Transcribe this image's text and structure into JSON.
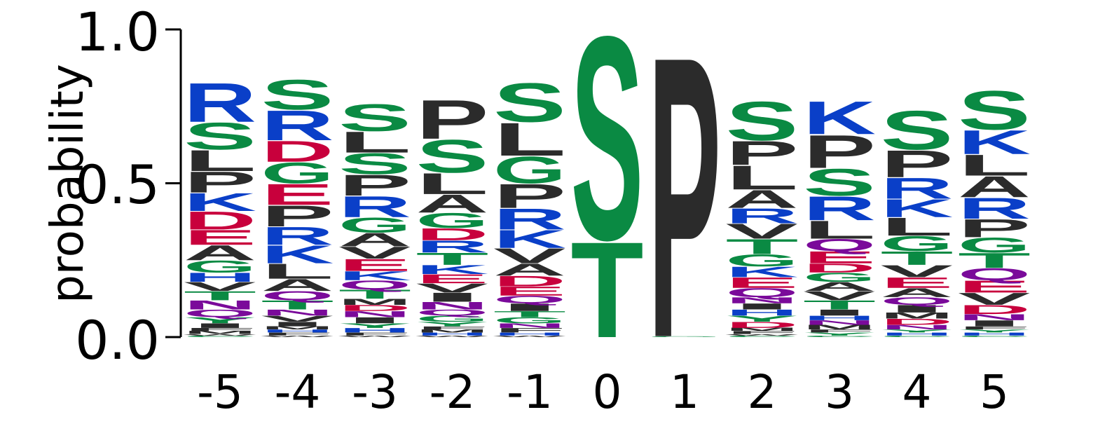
{
  "chart_data": {
    "type": "sequence-logo",
    "ylabel": "probability",
    "ylim": [
      0,
      1
    ],
    "y_ticks": [
      "0.0",
      "0.5",
      "1.0"
    ],
    "color_scheme": {
      "hydrophobic": "#2b2b2b",
      "polar": "#0a8a43",
      "basic": "#0a3fc8",
      "acidic": "#c8003c",
      "amide": "#7a0a9a"
    },
    "letter_colors": {
      "A": "#2b2b2b",
      "V": "#2b2b2b",
      "L": "#2b2b2b",
      "I": "#2b2b2b",
      "P": "#2b2b2b",
      "F": "#2b2b2b",
      "M": "#2b2b2b",
      "W": "#2b2b2b",
      "S": "#0a8a43",
      "T": "#0a8a43",
      "G": "#0a8a43",
      "Y": "#0a8a43",
      "C": "#0a8a43",
      "R": "#0a3fc8",
      "K": "#0a3fc8",
      "H": "#0a3fc8",
      "D": "#c8003c",
      "E": "#c8003c",
      "Q": "#7a0a9a",
      "N": "#7a0a9a"
    },
    "positions": [
      {
        "label": "-5",
        "letters": [
          {
            "aa": "R",
            "p": 0.13
          },
          {
            "aa": "P",
            "p": 0.07
          },
          {
            "aa": "S",
            "p": 0.09
          },
          {
            "aa": "L",
            "p": 0.07
          },
          {
            "aa": "D",
            "p": 0.06
          },
          {
            "aa": "K",
            "p": 0.06
          },
          {
            "aa": "A",
            "p": 0.05
          },
          {
            "aa": "E",
            "p": 0.05
          },
          {
            "aa": "G",
            "p": 0.04
          },
          {
            "aa": "N",
            "p": 0.03
          },
          {
            "aa": "T",
            "p": 0.03
          },
          {
            "aa": "V",
            "p": 0.03
          },
          {
            "aa": "H",
            "p": 0.03
          },
          {
            "aa": "Q",
            "p": 0.025
          },
          {
            "aa": "Y",
            "p": 0.02
          },
          {
            "aa": "I",
            "p": 0.015
          },
          {
            "aa": "M",
            "p": 0.01
          },
          {
            "aa": "F",
            "p": 0.01
          },
          {
            "aa": "C",
            "p": 0.005
          },
          {
            "aa": "W",
            "p": 0.005
          }
        ]
      },
      {
        "label": "-4",
        "letters": [
          {
            "aa": "R",
            "p": 0.1
          },
          {
            "aa": "S",
            "p": 0.1
          },
          {
            "aa": "P",
            "p": 0.07
          },
          {
            "aa": "E",
            "p": 0.07
          },
          {
            "aa": "G",
            "p": 0.07
          },
          {
            "aa": "D",
            "p": 0.07
          },
          {
            "aa": "K",
            "p": 0.06
          },
          {
            "aa": "R",
            "p": 0.06
          },
          {
            "aa": "L",
            "p": 0.05
          },
          {
            "aa": "A",
            "p": 0.04
          },
          {
            "aa": "T",
            "p": 0.03
          },
          {
            "aa": "Q",
            "p": 0.03
          },
          {
            "aa": "V",
            "p": 0.02
          },
          {
            "aa": "N",
            "p": 0.02
          },
          {
            "aa": "I",
            "p": 0.015
          },
          {
            "aa": "F",
            "p": 0.01
          },
          {
            "aa": "H",
            "p": 0.01
          },
          {
            "aa": "M",
            "p": 0.01
          },
          {
            "aa": "W",
            "p": 0.005
          }
        ]
      },
      {
        "label": "-3",
        "letters": [
          {
            "aa": "S",
            "p": 0.09
          },
          {
            "aa": "R",
            "p": 0.07
          },
          {
            "aa": "P",
            "p": 0.07
          },
          {
            "aa": "S",
            "p": 0.07
          },
          {
            "aa": "L",
            "p": 0.07
          },
          {
            "aa": "G",
            "p": 0.05
          },
          {
            "aa": "A",
            "p": 0.045
          },
          {
            "aa": "E",
            "p": 0.04
          },
          {
            "aa": "V",
            "p": 0.04
          },
          {
            "aa": "T",
            "p": 0.03
          },
          {
            "aa": "I",
            "p": 0.02
          },
          {
            "aa": "Q",
            "p": 0.03
          },
          {
            "aa": "K",
            "p": 0.03
          },
          {
            "aa": "N",
            "p": 0.02
          },
          {
            "aa": "D",
            "p": 0.02
          },
          {
            "aa": "M",
            "p": 0.02
          },
          {
            "aa": "H",
            "p": 0.015
          },
          {
            "aa": "Y",
            "p": 0.015
          },
          {
            "aa": "F",
            "p": 0.01
          },
          {
            "aa": "W",
            "p": 0.005
          }
        ]
      },
      {
        "label": "-2",
        "letters": [
          {
            "aa": "P",
            "p": 0.13
          },
          {
            "aa": "S",
            "p": 0.11
          },
          {
            "aa": "L",
            "p": 0.07
          },
          {
            "aa": "A",
            "p": 0.06
          },
          {
            "aa": "G",
            "p": 0.05
          },
          {
            "aa": "T",
            "p": 0.04
          },
          {
            "aa": "R",
            "p": 0.04
          },
          {
            "aa": "D",
            "p": 0.04
          },
          {
            "aa": "I",
            "p": 0.03
          },
          {
            "aa": "V",
            "p": 0.03
          },
          {
            "aa": "E",
            "p": 0.03
          },
          {
            "aa": "K",
            "p": 0.03
          },
          {
            "aa": "N",
            "p": 0.025
          },
          {
            "aa": "G",
            "p": 0.02
          },
          {
            "aa": "Q",
            "p": 0.02
          },
          {
            "aa": "Y",
            "p": 0.015
          },
          {
            "aa": "H",
            "p": 0.01
          },
          {
            "aa": "M",
            "p": 0.01
          },
          {
            "aa": "F",
            "p": 0.01
          },
          {
            "aa": "W",
            "p": 0.005
          }
        ]
      },
      {
        "label": "-1",
        "letters": [
          {
            "aa": "S",
            "p": 0.13
          },
          {
            "aa": "L",
            "p": 0.11
          },
          {
            "aa": "G",
            "p": 0.09
          },
          {
            "aa": "P",
            "p": 0.08
          },
          {
            "aa": "R",
            "p": 0.07
          },
          {
            "aa": "K",
            "p": 0.06
          },
          {
            "aa": "V",
            "p": 0.05
          },
          {
            "aa": "A",
            "p": 0.04
          },
          {
            "aa": "D",
            "p": 0.035
          },
          {
            "aa": "E",
            "p": 0.03
          },
          {
            "aa": "I",
            "p": 0.025
          },
          {
            "aa": "Q",
            "p": 0.025
          },
          {
            "aa": "G",
            "p": 0.02
          },
          {
            "aa": "T",
            "p": 0.02
          },
          {
            "aa": "F",
            "p": 0.015
          },
          {
            "aa": "N",
            "p": 0.015
          },
          {
            "aa": "H",
            "p": 0.01
          },
          {
            "aa": "W",
            "p": 0.005
          }
        ]
      },
      {
        "label": "0",
        "letters": [
          {
            "aa": "S",
            "p": 0.68
          },
          {
            "aa": "T",
            "p": 0.32
          }
        ]
      },
      {
        "label": "1",
        "letters": [
          {
            "aa": "P",
            "p": 0.94
          },
          {
            "aa": "G",
            "p": 0.003
          }
        ]
      },
      {
        "label": "2",
        "letters": [
          {
            "aa": "S",
            "p": 0.13
          },
          {
            "aa": "L",
            "p": 0.08
          },
          {
            "aa": "P",
            "p": 0.08
          },
          {
            "aa": "A",
            "p": 0.06
          },
          {
            "aa": "T",
            "p": 0.05
          },
          {
            "aa": "V",
            "p": 0.05
          },
          {
            "aa": "R",
            "p": 0.05
          },
          {
            "aa": "G",
            "p": 0.04
          },
          {
            "aa": "E",
            "p": 0.035
          },
          {
            "aa": "K",
            "p": 0.035
          },
          {
            "aa": "Q",
            "p": 0.03
          },
          {
            "aa": "D",
            "p": 0.02
          },
          {
            "aa": "Y",
            "p": 0.02
          },
          {
            "aa": "H",
            "p": 0.02
          },
          {
            "aa": "I",
            "p": 0.02
          },
          {
            "aa": "N",
            "p": 0.02
          },
          {
            "aa": "F",
            "p": 0.01
          },
          {
            "aa": "M",
            "p": 0.01
          },
          {
            "aa": "C",
            "p": 0.005
          },
          {
            "aa": "W",
            "p": 0.005
          }
        ]
      },
      {
        "label": "3",
        "letters": [
          {
            "aa": "P",
            "p": 0.11
          },
          {
            "aa": "S",
            "p": 0.09
          },
          {
            "aa": "K",
            "p": 0.11
          },
          {
            "aa": "R",
            "p": 0.08
          },
          {
            "aa": "L",
            "p": 0.06
          },
          {
            "aa": "E",
            "p": 0.04
          },
          {
            "aa": "T",
            "p": 0.03
          },
          {
            "aa": "Q",
            "p": 0.04
          },
          {
            "aa": "V",
            "p": 0.03
          },
          {
            "aa": "A",
            "p": 0.03
          },
          {
            "aa": "G",
            "p": 0.03
          },
          {
            "aa": "D",
            "p": 0.03
          },
          {
            "aa": "I",
            "p": 0.02
          },
          {
            "aa": "M",
            "p": 0.015
          },
          {
            "aa": "N",
            "p": 0.015
          },
          {
            "aa": "H",
            "p": 0.015
          },
          {
            "aa": "Y",
            "p": 0.01
          },
          {
            "aa": "F",
            "p": 0.01
          },
          {
            "aa": "C",
            "p": 0.005
          }
        ]
      },
      {
        "label": "4",
        "letters": [
          {
            "aa": "S",
            "p": 0.13
          },
          {
            "aa": "P",
            "p": 0.09
          },
          {
            "aa": "R",
            "p": 0.07
          },
          {
            "aa": "L",
            "p": 0.06
          },
          {
            "aa": "K",
            "p": 0.06
          },
          {
            "aa": "T",
            "p": 0.045
          },
          {
            "aa": "G",
            "p": 0.05
          },
          {
            "aa": "V",
            "p": 0.04
          },
          {
            "aa": "E",
            "p": 0.035
          },
          {
            "aa": "A",
            "p": 0.03
          },
          {
            "aa": "I",
            "p": 0.025
          },
          {
            "aa": "Q",
            "p": 0.025
          },
          {
            "aa": "D",
            "p": 0.02
          },
          {
            "aa": "M",
            "p": 0.02
          },
          {
            "aa": "N",
            "p": 0.015
          },
          {
            "aa": "H",
            "p": 0.01
          },
          {
            "aa": "Y",
            "p": 0.01
          },
          {
            "aa": "C",
            "p": 0.005
          }
        ]
      },
      {
        "label": "5",
        "letters": [
          {
            "aa": "S",
            "p": 0.13
          },
          {
            "aa": "R",
            "p": 0.07
          },
          {
            "aa": "K",
            "p": 0.08
          },
          {
            "aa": "A",
            "p": 0.07
          },
          {
            "aa": "L",
            "p": 0.07
          },
          {
            "aa": "P",
            "p": 0.06
          },
          {
            "aa": "T",
            "p": 0.05
          },
          {
            "aa": "G",
            "p": 0.05
          },
          {
            "aa": "V",
            "p": 0.04
          },
          {
            "aa": "E",
            "p": 0.04
          },
          {
            "aa": "Q",
            "p": 0.04
          },
          {
            "aa": "D",
            "p": 0.03
          },
          {
            "aa": "I",
            "p": 0.02
          },
          {
            "aa": "N",
            "p": 0.02
          },
          {
            "aa": "H",
            "p": 0.01
          },
          {
            "aa": "Y",
            "p": 0.01
          },
          {
            "aa": "F",
            "p": 0.01
          },
          {
            "aa": "C",
            "p": 0.005
          }
        ]
      }
    ]
  }
}
